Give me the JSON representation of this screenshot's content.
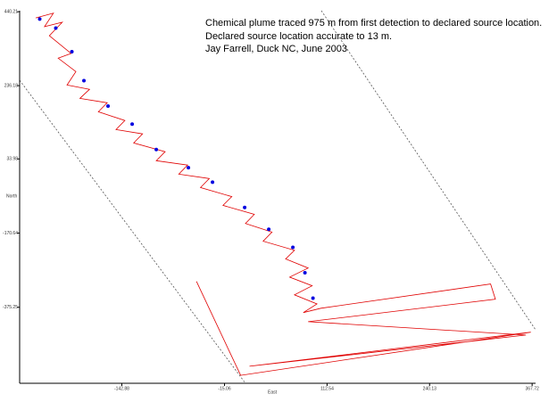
{
  "chart_data": {
    "type": "line",
    "annotations": [
      "Chemical plume traced 975 m from first detection to declared source location.",
      "Declared source location accurate to 13 m.",
      "Jay Farrell, Duck NC, June 2003"
    ],
    "xlabel": "East",
    "ylabel": "North",
    "xlim": [
      -270,
      372
    ],
    "ylim": [
      -585,
      443
    ],
    "xticks": [
      -142.88,
      -15.06,
      112.54,
      240.13,
      367.72
    ],
    "yticks": [
      440.21,
      236.18,
      33.98,
      -170.64,
      -375.25
    ],
    "series": [
      {
        "color": "#e00000",
        "x": [
          -250,
          -228,
          -239,
          -217,
          -233,
          -206,
          -222,
          -200,
          -211,
          -183,
          -195,
          -161,
          -172,
          -139,
          -150,
          -117,
          -128,
          -89,
          -100,
          -61,
          -72,
          -34,
          -45,
          -6,
          -17,
          22,
          11,
          44,
          33,
          72,
          61,
          89,
          66,
          94,
          72,
          100,
          83,
          105,
          316,
          322,
          89,
          360,
          16,
          366,
          5,
          -50
        ],
        "values": [
          423,
          436,
          399,
          411,
          374,
          325,
          312,
          275,
          238,
          226,
          201,
          189,
          164,
          140,
          115,
          103,
          78,
          54,
          29,
          17,
          -8,
          -20,
          -45,
          -70,
          -94,
          -119,
          -144,
          -168,
          -193,
          -218,
          -242,
          -267,
          -292,
          -316,
          -341,
          -366,
          -390,
          -378,
          -311,
          -353,
          -415,
          -452,
          -538,
          -444,
          -563,
          -304
        ]
      },
      {
        "color": "#0000e0",
        "marker": true,
        "x": [
          -245,
          -225,
          -205,
          -190,
          -160,
          -130,
          -100,
          -60,
          -30,
          10,
          40,
          70,
          85,
          95
        ],
        "values": [
          420,
          395,
          330,
          250,
          180,
          130,
          60,
          10,
          -30,
          -100,
          -160,
          -210,
          -280,
          -350
        ]
      }
    ]
  }
}
